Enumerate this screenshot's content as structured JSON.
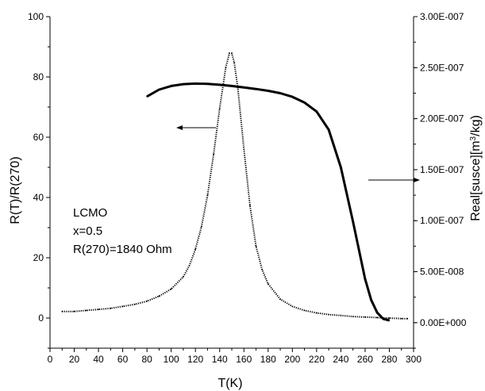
{
  "chart_data": {
    "type": "line",
    "xlabel": "T(K)",
    "ylabel_left": "R(T)/R(270)",
    "ylabel_right": "Real[susce][m",
    "ylabel_right_sup": "3",
    "ylabel_right_end": "/kg)",
    "xlim": [
      0,
      300
    ],
    "ylim_left": [
      -10,
      100
    ],
    "ylim_right": [
      -2.5e-08,
      3e-07
    ],
    "x_ticks": [
      "0",
      "20",
      "40",
      "60",
      "80",
      "100",
      "120",
      "140",
      "160",
      "180",
      "200",
      "220",
      "240",
      "260",
      "280",
      "300"
    ],
    "y_left_ticks": [
      "0",
      "20",
      "40",
      "60",
      "80",
      "100"
    ],
    "y_right_ticks": [
      "0.00E+000",
      "5.00E-008",
      "1.00E-007",
      "1.50E-007",
      "2.00E-007",
      "2.50E-007",
      "3.00E-007"
    ],
    "annotations": [
      "LCMO",
      "x=0.5",
      "R(270)=1840 Ohm"
    ],
    "series": [
      {
        "axis": "left",
        "style": "solid",
        "x": [
          80,
          90,
          100,
          110,
          120,
          130,
          140,
          150,
          160,
          170,
          180,
          190,
          200,
          210,
          220,
          230,
          240,
          250,
          260,
          265,
          270,
          275,
          280
        ],
        "y": [
          73.5,
          75.8,
          77.0,
          77.6,
          77.8,
          77.7,
          77.4,
          77.0,
          76.5,
          76.0,
          75.4,
          74.6,
          73.4,
          71.5,
          68.5,
          62.5,
          50,
          32,
          13,
          6,
          1.8,
          -0.3,
          -0.8
        ]
      },
      {
        "axis": "right",
        "style": "dotted",
        "x": [
          10,
          20,
          30,
          40,
          50,
          60,
          70,
          80,
          90,
          100,
          110,
          115,
          120,
          125,
          130,
          135,
          140,
          145,
          148,
          150,
          152,
          155,
          160,
          165,
          170,
          175,
          180,
          190,
          200,
          210,
          220,
          230,
          240,
          250,
          260,
          270,
          280,
          290,
          295
        ],
        "y": [
          1.1e-08,
          1.1e-08,
          1.2e-08,
          1.3e-08,
          1.4e-08,
          1.6e-08,
          1.8e-08,
          2.1e-08,
          2.6e-08,
          3.3e-08,
          4.5e-08,
          5.6e-08,
          7.2e-08,
          9.4e-08,
          1.25e-07,
          1.65e-07,
          2.1e-07,
          2.5e-07,
          2.64e-07,
          2.64e-07,
          2.55e-07,
          2.3e-07,
          1.7e-07,
          1.15e-07,
          7.5e-08,
          5.2e-08,
          3.8e-08,
          2.3e-08,
          1.6e-08,
          1.2e-08,
          9.5e-09,
          8e-09,
          7e-09,
          6e-09,
          5.5e-09,
          5e-09,
          4.5e-09,
          4e-09,
          4e-09
        ]
      }
    ]
  }
}
